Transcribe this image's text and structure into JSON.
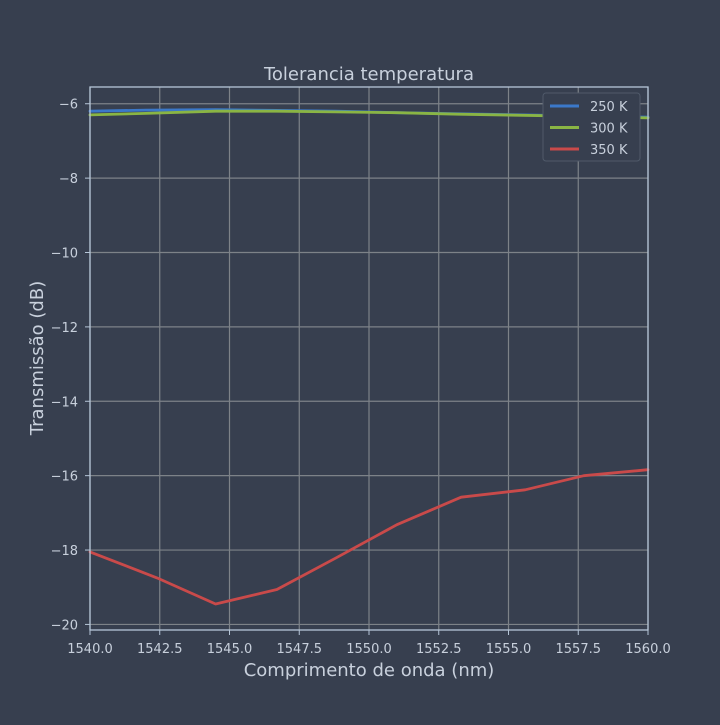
{
  "chart_data": {
    "type": "line",
    "title": "Tolerancia temperatura",
    "xlabel": "Comprimento de onda (nm)",
    "ylabel": "Transmissão (dB)",
    "xlim": [
      1540.0,
      1560.0
    ],
    "ylim": [
      -20.15,
      -5.55
    ],
    "xticks": [
      1540.0,
      1542.5,
      1545.0,
      1547.5,
      1550.0,
      1552.5,
      1555.0,
      1557.5,
      1560.0
    ],
    "xtick_labels": [
      "1540.0",
      "1542.5",
      "1545.0",
      "1547.5",
      "1550.0",
      "1552.5",
      "1555.0",
      "1557.5",
      "1560.0"
    ],
    "yticks": [
      -6,
      -8,
      -10,
      -12,
      -14,
      -16,
      -18,
      -20
    ],
    "ytick_labels": [
      "−6",
      "−8",
      "−10",
      "−12",
      "−14",
      "−16",
      "−18",
      "−20"
    ],
    "grid": true,
    "legend_position": "top-right",
    "series": [
      {
        "name": "250 K",
        "color": "#3b78c9",
        "x": [
          1540.0,
          1542.0,
          1544.5,
          1546.7,
          1548.8,
          1551.0,
          1553.2,
          1555.5,
          1557.7,
          1560.0
        ],
        "y": [
          -6.2,
          -6.17,
          -6.16,
          -6.18,
          -6.2,
          -6.24,
          -6.27,
          -6.3,
          -6.33,
          -6.36
        ]
      },
      {
        "name": "300 K",
        "color": "#8ab544",
        "x": [
          1540.0,
          1542.0,
          1544.5,
          1546.7,
          1548.8,
          1551.0,
          1553.2,
          1555.5,
          1557.7,
          1560.0
        ],
        "y": [
          -6.3,
          -6.26,
          -6.2,
          -6.2,
          -6.22,
          -6.24,
          -6.28,
          -6.31,
          -6.34,
          -6.38
        ]
      },
      {
        "name": "350 K",
        "color": "#c94a4a",
        "x": [
          1540.0,
          1542.4,
          1544.5,
          1546.7,
          1548.8,
          1551.0,
          1553.3,
          1555.6,
          1557.7,
          1560.0
        ],
        "y": [
          -18.05,
          -18.75,
          -19.45,
          -19.06,
          -18.22,
          -17.32,
          -16.58,
          -16.38,
          -16.0,
          -15.84
        ]
      }
    ]
  }
}
